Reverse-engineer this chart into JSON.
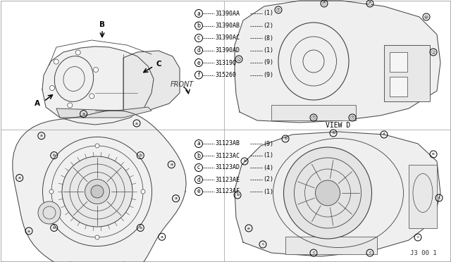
{
  "background_color": "#ffffff",
  "top_legend": [
    {
      "circle": "a",
      "part": "31390AA",
      "qty": "(1)"
    },
    {
      "circle": "b",
      "part": "31390AB",
      "qty": "(2)"
    },
    {
      "circle": "c",
      "part": "31390AC",
      "qty": "(8)"
    },
    {
      "circle": "d",
      "part": "31390AD",
      "qty": "(1)"
    },
    {
      "circle": "e",
      "part": "31319Q",
      "qty": "(9)"
    },
    {
      "circle": "f",
      "part": "315260",
      "qty": "(9)"
    }
  ],
  "bottom_legend": [
    {
      "circle": "a",
      "part": "31123AB",
      "qty": "(9)"
    },
    {
      "circle": "b",
      "part": "31123AC",
      "qty": "(1)"
    },
    {
      "circle": "c",
      "part": "31123AD",
      "qty": "(4)"
    },
    {
      "circle": "d",
      "part": "31123AE",
      "qty": "(2)"
    },
    {
      "circle": "e",
      "part": "31123AF",
      "qty": "(1)"
    }
  ],
  "diagram_label": "J3 00 1"
}
